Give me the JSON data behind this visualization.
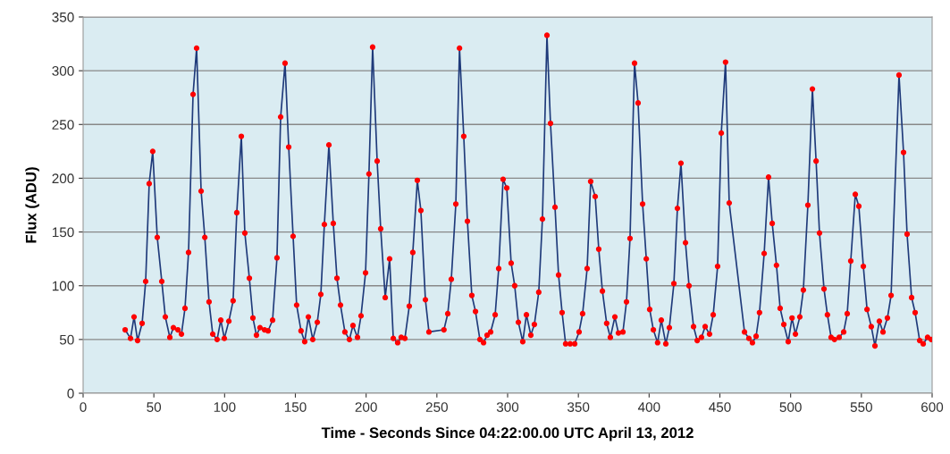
{
  "chart_data": {
    "type": "line",
    "xlabel": "Time - Seconds Since 04:22:00.00 UTC April 13, 2012",
    "ylabel": "Flux (ADU)",
    "xlim": [
      0,
      600
    ],
    "xticks": [
      0,
      50,
      100,
      150,
      200,
      250,
      300,
      350,
      400,
      450,
      500,
      550,
      600
    ],
    "ylim": [
      0,
      350
    ],
    "yticks": [
      0,
      50,
      100,
      150,
      200,
      250,
      300,
      350
    ],
    "grid": "y",
    "legend": false,
    "marker": "circle",
    "line_style": "solid",
    "series": [
      {
        "color": "#1f3a7a",
        "x": [
          29.7,
          33.5,
          36,
          38.5,
          41.7,
          44.2,
          46.7,
          49.2,
          52.4,
          55.6,
          58.1,
          61.3,
          63.8,
          67,
          69.5,
          72,
          74.5,
          77.7,
          80.2,
          83.4,
          86,
          89,
          91.6,
          94.7,
          97.3,
          99.8,
          103,
          106,
          108.6,
          111.8,
          114.3,
          117.5,
          120,
          122.5,
          125,
          128.2,
          130.7,
          133.9,
          137,
          139.6,
          142.7,
          145.3,
          148.4,
          150.9,
          154,
          156.6,
          159.2,
          162.3,
          165.5,
          168,
          170.5,
          173.7,
          176.8,
          179.4,
          181.9,
          185,
          188.2,
          190.7,
          193.9,
          196.4,
          199.6,
          202,
          204.6,
          207.8,
          210.3,
          213.5,
          216.6,
          219.2,
          222.3,
          224.8,
          227.4,
          230.5,
          233,
          236.2,
          238.7,
          241.9,
          244.4,
          255,
          257.7,
          260.2,
          263.4,
          266,
          269,
          271.6,
          274.7,
          277.3,
          280.4,
          283,
          285.5,
          288,
          291.2,
          293.7,
          296.8,
          299.4,
          302.5,
          305,
          307.6,
          310.7,
          313.3,
          316.4,
          318.9,
          322,
          324.6,
          327.8,
          330.3,
          333.5,
          336,
          338.5,
          341,
          344.2,
          347.4,
          350.5,
          353,
          356.2,
          358.7,
          361.9,
          364.4,
          367,
          370,
          372.6,
          375.8,
          378.3,
          381.5,
          384,
          386.5,
          389.7,
          392.2,
          395.4,
          398,
          400.4,
          403,
          406,
          408.6,
          411.8,
          414.3,
          417.5,
          420,
          422.5,
          425.7,
          428.2,
          431.4,
          434,
          437,
          439.6,
          442.7,
          445.3,
          448.4,
          451,
          454,
          456.6,
          467.4,
          470.5,
          473,
          475.6,
          478,
          481.3,
          484.4,
          487,
          490,
          492.6,
          495.2,
          498.3,
          501,
          503.4,
          506.5,
          509,
          512.2,
          515.4,
          518,
          520.4,
          523.6,
          526,
          528.6,
          531,
          534.3,
          537.5,
          540,
          542.5,
          545.7,
          548.2,
          551.4,
          554,
          557,
          559.6,
          562.7,
          565.3,
          568.4,
          571,
          576.6,
          579.8,
          582.3,
          585.5,
          588,
          591.2,
          593.7,
          596.8,
          599.4
        ],
        "values": [
          59,
          51,
          71,
          49,
          65,
          104,
          195,
          225,
          145,
          104,
          71,
          52,
          61,
          59,
          55,
          79,
          131,
          278,
          321,
          188,
          145,
          85,
          55,
          50,
          68,
          51,
          67,
          86,
          168,
          239,
          149,
          107,
          70,
          54,
          61,
          59,
          58,
          68,
          126,
          257,
          307,
          229,
          146,
          82,
          58,
          48,
          71,
          50,
          66,
          92,
          157,
          231,
          158,
          107,
          82,
          57,
          50,
          63,
          52,
          72,
          112,
          204,
          322,
          216,
          153,
          89,
          125,
          51,
          47,
          52,
          51,
          81,
          131,
          198,
          170,
          87,
          57,
          59,
          74,
          106,
          176,
          321,
          239,
          160,
          91,
          76,
          50,
          47,
          54,
          57,
          73,
          116,
          199,
          191,
          121,
          100,
          66,
          48,
          73,
          54,
          64,
          94,
          162,
          333,
          251,
          173,
          110,
          75,
          46,
          46,
          46,
          57,
          74,
          116,
          197,
          183,
          134,
          95,
          65,
          52,
          71,
          56,
          57,
          85,
          144,
          307,
          270,
          176,
          125,
          78,
          59,
          47,
          68,
          46,
          61,
          102,
          172,
          214,
          140,
          100,
          62,
          49,
          52,
          62,
          55,
          73,
          118,
          242,
          308,
          177,
          57,
          51,
          47,
          53,
          75,
          130,
          201,
          158,
          119,
          79,
          64,
          48,
          70,
          55,
          71,
          96,
          175,
          283,
          216,
          149,
          97,
          73,
          52,
          50,
          52,
          57,
          74,
          123,
          185,
          174,
          118,
          78,
          62,
          44,
          67,
          57,
          70,
          91,
          296,
          224,
          148,
          89,
          75,
          49,
          46,
          52,
          50
        ]
      }
    ]
  }
}
